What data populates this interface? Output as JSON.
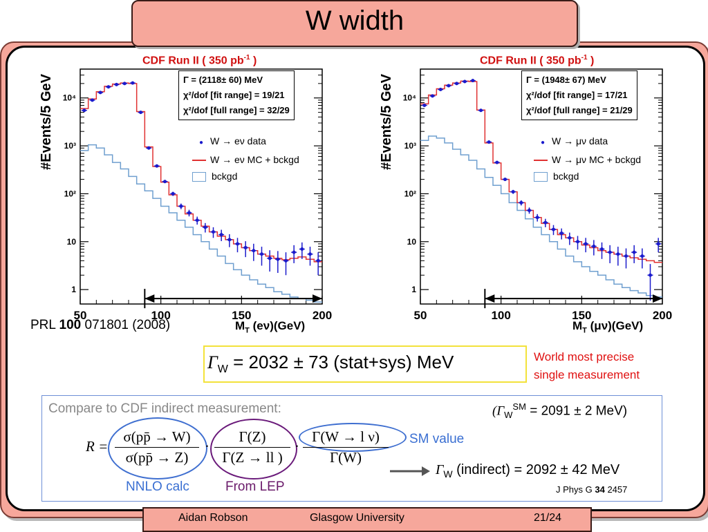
{
  "slide": {
    "title": "W width",
    "footer": {
      "author": "Aidan Robson",
      "institution": "Glasgow University",
      "page": "21/24"
    }
  },
  "plots": [
    {
      "title": "CDF Run II ( 350 pb",
      "title_sup": "-1",
      "title_close": " )",
      "ylabel": "#Events/5 GeV",
      "xlabel_prefix": "M",
      "xlabel_sub": "T",
      "xlabel_suffix": " (eν)(GeV)",
      "stats": [
        "Γ  = (2118± 60) MeV",
        "χ²/dof [fit range]   = 19/21",
        "χ²/dof [full range] = 32/29"
      ],
      "gamma_sub": "W",
      "legend": [
        "W → eν data",
        "W → eν MC + bckgd",
        "bckgd"
      ]
    },
    {
      "title": "CDF Run II ( 350 pb",
      "title_sup": "-1",
      "title_close": " )",
      "ylabel": "#Events/5 GeV",
      "xlabel_prefix": "M",
      "xlabel_sub": "T",
      "xlabel_suffix": " (μν)(GeV)",
      "stats": [
        "Γ  = (1948± 67) MeV",
        "χ²/dof [fit range]   = 17/21",
        "χ²/dof [full range] = 21/29"
      ],
      "gamma_sub": "W",
      "legend": [
        "W → μν data",
        "W → μν MC + bckgd",
        "bckgd"
      ]
    }
  ],
  "axes": {
    "xticks": [
      "50",
      "100",
      "150",
      "200"
    ],
    "yticks": [
      "10⁴",
      "10³",
      "10²",
      "10",
      "1"
    ]
  },
  "chart_data": [
    {
      "type": "line",
      "x": [
        52.5,
        57.5,
        62.5,
        67.5,
        72.5,
        77.5,
        82.5,
        87.5,
        92.5,
        97.5,
        102.5,
        107.5,
        112.5,
        117.5,
        122.5,
        127.5,
        132.5,
        137.5,
        142.5,
        147.5,
        152.5,
        157.5,
        162.5,
        167.5,
        172.5,
        177.5,
        182.5,
        187.5,
        192.5,
        197.5
      ],
      "series": [
        {
          "name": "W → eν data",
          "values": [
            5500,
            9000,
            13000,
            17000,
            19000,
            20000,
            20500,
            5000,
            900,
            380,
            180,
            100,
            55,
            40,
            28,
            20,
            16,
            14,
            11,
            9,
            7.5,
            6.5,
            5.5,
            4.5,
            4.3,
            4,
            6,
            7,
            5.5,
            4
          ]
        },
        {
          "name": "W → eν MC + bckgd",
          "values": [
            6000,
            9500,
            13500,
            17500,
            19500,
            20500,
            20000,
            5200,
            950,
            370,
            175,
            95,
            55,
            38,
            28,
            21,
            16,
            13,
            11,
            9,
            7.5,
            6.5,
            5.5,
            5,
            4.5,
            4.2,
            4.5,
            4.8,
            4.3,
            3.8
          ]
        },
        {
          "name": "bckgd",
          "values": [
            800,
            1050,
            900,
            650,
            450,
            330,
            230,
            160,
            115,
            80,
            55,
            40,
            28,
            20,
            14,
            10,
            7,
            5,
            3.5,
            2.6,
            2,
            1.6,
            1.3,
            1.1,
            0.9,
            0.8,
            0.7,
            0.65,
            0.6,
            0.55
          ]
        }
      ],
      "xlabel": "M (eν)(GeV)",
      "ylabel": "#Events/5 GeV",
      "xlim": [
        50,
        200
      ],
      "ylim": [
        0.5,
        40000
      ],
      "yscale": "log",
      "fit_range": [
        90,
        200
      ]
    },
    {
      "type": "line",
      "x": [
        52.5,
        57.5,
        62.5,
        67.5,
        72.5,
        77.5,
        82.5,
        87.5,
        92.5,
        97.5,
        102.5,
        107.5,
        112.5,
        117.5,
        122.5,
        127.5,
        132.5,
        137.5,
        142.5,
        147.5,
        152.5,
        157.5,
        162.5,
        167.5,
        172.5,
        177.5,
        182.5,
        187.5,
        192.5,
        197.5
      ],
      "series": [
        {
          "name": "W → μν data",
          "values": [
            7000,
            11000,
            15000,
            18000,
            20000,
            22000,
            23000,
            5500,
            1200,
            450,
            200,
            110,
            65,
            45,
            32,
            25,
            18,
            15,
            12,
            10,
            9,
            8,
            7,
            6,
            5.5,
            5,
            6,
            5,
            2,
            9
          ]
        },
        {
          "name": "W → μν MC + bckgd",
          "values": [
            7500,
            11500,
            15500,
            18500,
            20500,
            22500,
            22000,
            5600,
            1150,
            440,
            200,
            110,
            65,
            45,
            32,
            24,
            18,
            14,
            12,
            10,
            8.5,
            7.5,
            6.5,
            6,
            5.5,
            5,
            4.6,
            4.3,
            4,
            3.7
          ]
        },
        {
          "name": "bckgd",
          "values": [
            1300,
            1600,
            1450,
            1150,
            850,
            650,
            500,
            330,
            220,
            150,
            100,
            65,
            45,
            30,
            20,
            14,
            10,
            7,
            5,
            3.8,
            3,
            2.4,
            2,
            1.6,
            1.3,
            1.1,
            0.95,
            0.85,
            0.75,
            0.7
          ]
        }
      ],
      "xlabel": "M (μν)(GeV)",
      "ylabel": "#Events/5 GeV",
      "xlim": [
        50,
        200
      ],
      "ylim": [
        0.5,
        40000
      ],
      "yscale": "log",
      "fit_range": [
        90,
        200
      ]
    }
  ],
  "prl": {
    "prefix": "PRL ",
    "vol": "100",
    "suffix": " 071801 (2008)"
  },
  "result": {
    "gamma": "Γ",
    "sub": "W",
    "text": " = 2032 ± 73 (stat+sys) MeV"
  },
  "world": {
    "line1": "World most precise",
    "line2": "single measurement"
  },
  "compare": {
    "label": "Compare to CDF indirect measurement:",
    "sm_open": "(Γ",
    "sm_sub": "W",
    "sm_sup": "SM",
    "sm_rest": " = 2091 ± 2 MeV)"
  },
  "formula": {
    "R": "R =",
    "f1_num": "σ(pp̄ → W)",
    "f1_den": "σ(pp̄ → Z)",
    "f2_num": "Γ(Z)",
    "f2_den": "Γ(Z → ll )",
    "f3_num": "Γ(W → l ν)",
    "f3_den": "Γ(W)"
  },
  "annotations": {
    "sm_value": "SM value",
    "nnlo": "NNLO calc",
    "lep": "From LEP"
  },
  "indirect": {
    "gamma": "Γ",
    "sub": "W",
    "text": " (indirect) = 2092 ± 42 MeV"
  },
  "jphys": {
    "prefix": "J Phys G ",
    "vol": "34",
    "suffix": " 2457"
  },
  "colors": {
    "frame": "#f6a79b",
    "mc_line": "#e03030",
    "bckgd_line": "#6f9fcf",
    "data_marker": "#1a1acc"
  }
}
